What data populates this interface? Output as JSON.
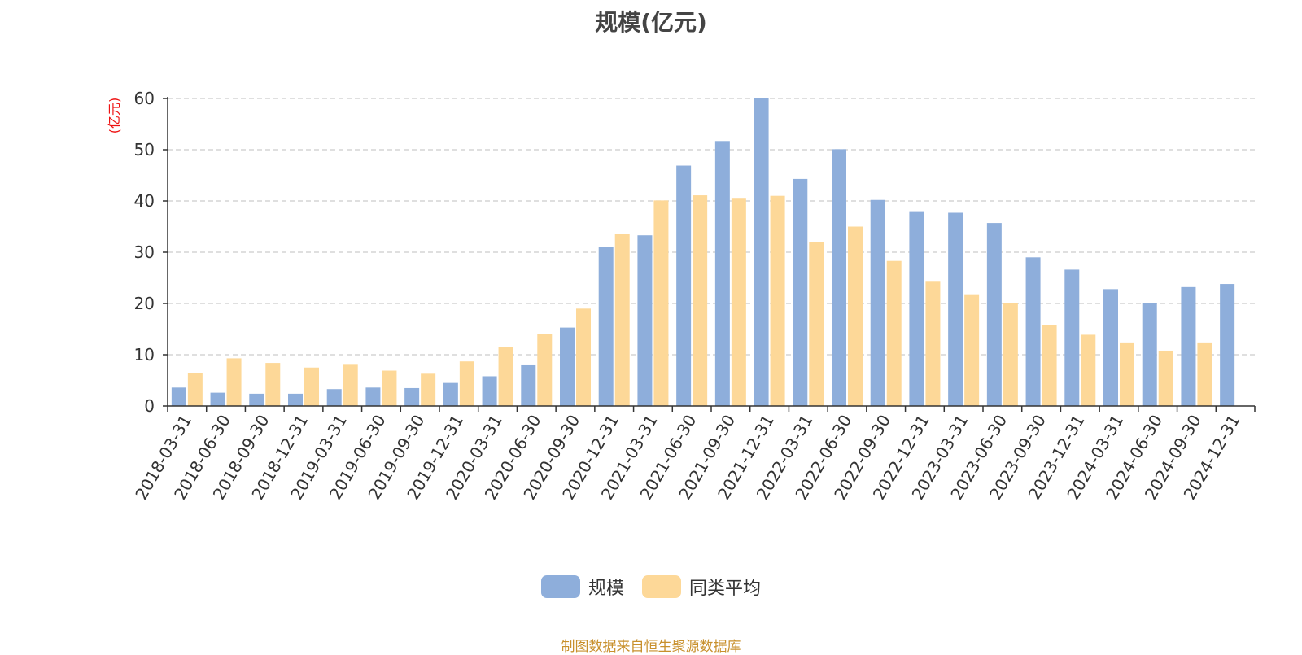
{
  "chart_data": {
    "type": "bar",
    "title": "规模(亿元)",
    "ylabel": "(亿元)",
    "xlabel": "",
    "ylim": [
      0,
      60
    ],
    "yticks": [
      0,
      10,
      20,
      30,
      40,
      50,
      60
    ],
    "grid": true,
    "legend_position": "bottom",
    "categories": [
      "2018-03-31",
      "2018-06-30",
      "2018-09-30",
      "2018-12-31",
      "2019-03-31",
      "2019-06-30",
      "2019-09-30",
      "2019-12-31",
      "2020-03-31",
      "2020-06-30",
      "2020-09-30",
      "2020-12-31",
      "2021-03-31",
      "2021-06-30",
      "2021-09-30",
      "2021-12-31",
      "2022-03-31",
      "2022-06-30",
      "2022-09-30",
      "2022-12-31",
      "2023-03-31",
      "2023-06-30",
      "2023-09-30",
      "2023-12-31",
      "2024-03-31",
      "2024-06-30",
      "2024-09-30",
      "2024-12-31"
    ],
    "series": [
      {
        "name": "规模",
        "color": "#8eaedb",
        "values": [
          3.6,
          2.6,
          2.4,
          2.4,
          3.3,
          3.6,
          3.5,
          4.5,
          5.8,
          8.1,
          15.3,
          31.0,
          33.3,
          46.9,
          51.7,
          60.0,
          44.3,
          50.1,
          40.2,
          38.0,
          37.7,
          35.7,
          29.0,
          26.6,
          22.8,
          20.1,
          23.2,
          23.8
        ]
      },
      {
        "name": "同类平均",
        "color": "#fdd898",
        "values": [
          6.5,
          9.3,
          8.4,
          7.5,
          8.2,
          6.9,
          6.3,
          8.7,
          11.5,
          14.0,
          19.0,
          33.5,
          40.1,
          41.1,
          40.6,
          41.0,
          32.0,
          35.0,
          28.3,
          24.4,
          21.8,
          20.1,
          15.8,
          13.9,
          12.4,
          10.8,
          12.4,
          null
        ]
      }
    ]
  },
  "source_text": "制图数据来自恒生聚源数据库"
}
